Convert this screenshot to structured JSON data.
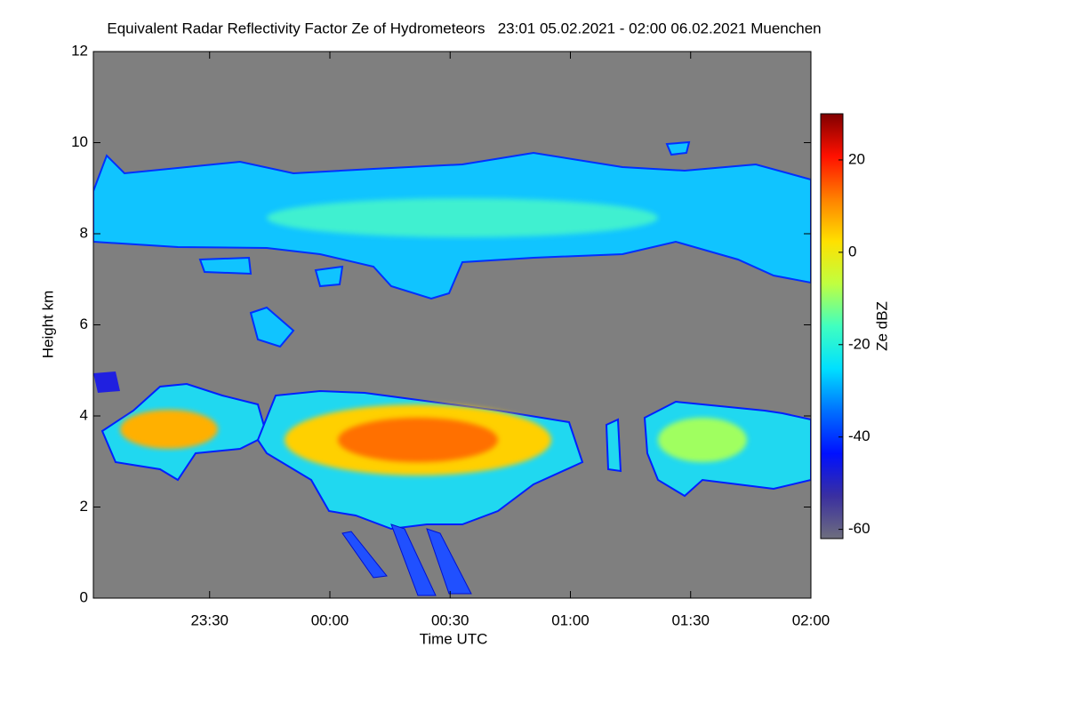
{
  "chart_data": {
    "type": "heatmap",
    "title": "Equivalent Radar Reflectivity Factor Ze of Hydrometeors   23:01 05.02.2021 - 02:00 06.02.2021 Muenchen",
    "x_label": "Time UTC",
    "y_label": "Height km",
    "xlim": [
      1381,
      1560
    ],
    "xticks": [
      {
        "value": 1410,
        "label": "23:30"
      },
      {
        "value": 1440,
        "label": "00:00"
      },
      {
        "value": 1470,
        "label": "00:30"
      },
      {
        "value": 1500,
        "label": "01:00"
      },
      {
        "value": 1530,
        "label": "01:30"
      },
      {
        "value": 1560,
        "label": "02:00"
      }
    ],
    "ylim": [
      0,
      12
    ],
    "yticks": [
      0,
      2,
      4,
      6,
      8,
      10,
      12
    ],
    "background_color": "#7f7f7f",
    "colorbar": {
      "label": "Ze dBZ",
      "lim": [
        -62,
        30
      ],
      "ticks": [
        -60,
        -40,
        -20,
        0,
        20
      ],
      "colors": [
        "#6e6e7e",
        "#3a2fa0",
        "#0010ff",
        "#0070ff",
        "#00e0ff",
        "#40ffc0",
        "#c0ff40",
        "#ffe000",
        "#ff8000",
        "#ff1000",
        "#800000"
      ]
    }
  }
}
